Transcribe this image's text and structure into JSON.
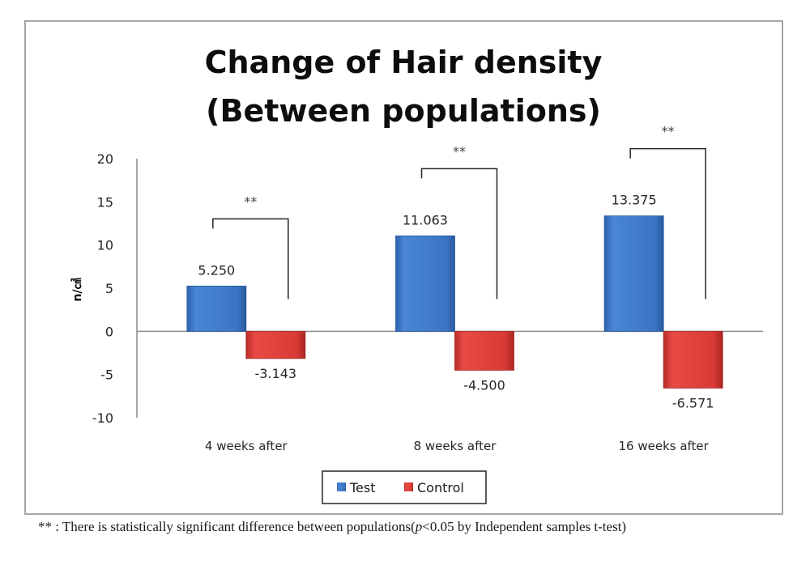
{
  "chart_data": {
    "type": "bar",
    "title": "Change of Hair density (Between populations)",
    "title_lines": [
      "Change of Hair density",
      "(Between populations)"
    ],
    "xlabel": "",
    "ylabel": "n/㎠",
    "ylim": [
      -10,
      20
    ],
    "yticks": [
      20,
      15,
      10,
      5,
      0,
      -5,
      -10
    ],
    "ytick_labels": [
      "20",
      "15",
      "10",
      "5",
      "0",
      "-5",
      "-10"
    ],
    "grid": false,
    "categories": [
      "4 weeks after",
      "8 weeks after",
      "16 weeks after"
    ],
    "series": [
      {
        "name": "Test",
        "color": "#3a75c4",
        "values": [
          5.25,
          11.063,
          13.375
        ],
        "labels": [
          "5.250",
          "11.063",
          "13.375"
        ]
      },
      {
        "name": "Control",
        "color": "#d93a35",
        "values": [
          -3.143,
          -4.5,
          -6.571
        ],
        "labels": [
          "-3.143",
          "-4.500",
          "-6.571"
        ]
      }
    ],
    "significance": [
      {
        "category": "4 weeks after",
        "marker": "**"
      },
      {
        "category": "8 weeks after",
        "marker": "**"
      },
      {
        "category": "16 weeks after",
        "marker": "**"
      }
    ],
    "legend": {
      "position": "bottom",
      "entries": [
        "Test",
        "Control"
      ]
    }
  },
  "footnote": {
    "prefix": "** : There is statistically significant  difference between populations(",
    "p_symbol": "p",
    "suffix": "<0.05 by Independent samples t-test)"
  }
}
